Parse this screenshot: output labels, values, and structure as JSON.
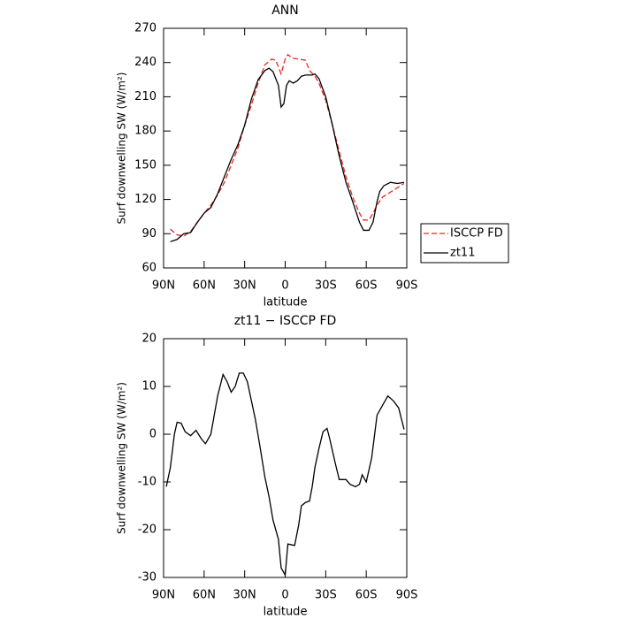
{
  "chart_data": [
    {
      "type": "line",
      "title": "ANN",
      "xlabel": "latitude",
      "ylabel": "Surf downwelling SW (W/m²)",
      "xlim": [
        90,
        -90
      ],
      "ylim": [
        60,
        270
      ],
      "xticks": [
        {
          "value": 90,
          "label": "90N"
        },
        {
          "value": 60,
          "label": "60N"
        },
        {
          "value": 30,
          "label": "30N"
        },
        0,
        {
          "value": -30,
          "label": "30S"
        },
        {
          "value": -60,
          "label": "60S"
        },
        {
          "value": -90,
          "label": "90S"
        }
      ],
      "yticks": [
        60,
        90,
        120,
        150,
        180,
        210,
        240,
        270
      ],
      "legend": "right",
      "series": [
        {
          "name": "ISCCP FD",
          "color": "#e8261f",
          "dashed": true,
          "x": [
            85,
            80,
            75,
            70,
            65,
            60,
            55,
            50,
            45,
            40,
            35,
            30,
            25,
            20,
            15,
            10,
            7,
            3,
            0,
            -2,
            -5,
            -10,
            -15,
            -18,
            -22,
            -25,
            -30,
            -35,
            -40,
            -45,
            -50,
            -55,
            -58,
            -62,
            -65,
            -68,
            -72,
            -80,
            -88
          ],
          "values": [
            94,
            89,
            88,
            92,
            100,
            108,
            115,
            124,
            135,
            150,
            165,
            185,
            203,
            222,
            238,
            243,
            242,
            230,
            243,
            247,
            244,
            243,
            242,
            233,
            228,
            222,
            207,
            185,
            162,
            140,
            122,
            108,
            102,
            102,
            108,
            115,
            122,
            128,
            134
          ]
        },
        {
          "name": "zt11",
          "color": "#000000",
          "dashed": false,
          "x": [
            85,
            80,
            75,
            70,
            65,
            60,
            55,
            50,
            45,
            40,
            35,
            30,
            25,
            20,
            15,
            12,
            9,
            5,
            3,
            1,
            -1,
            -3,
            -6,
            -9,
            -12,
            -15,
            -20,
            -22,
            -25,
            -30,
            -35,
            -40,
            -45,
            -50,
            -55,
            -58,
            -62,
            -65,
            -68,
            -70,
            -73,
            -78,
            -83,
            -88
          ],
          "values": [
            83,
            85,
            90,
            91,
            100,
            108,
            113,
            125,
            140,
            155,
            168,
            185,
            208,
            225,
            233,
            235,
            232,
            220,
            201,
            204,
            220,
            224,
            222,
            224,
            228,
            229,
            229,
            230,
            226,
            210,
            185,
            158,
            135,
            118,
            100,
            93,
            93,
            100,
            118,
            127,
            132,
            135,
            134,
            135
          ]
        }
      ]
    },
    {
      "type": "line",
      "title": "zt11 − ISCCP FD",
      "xlabel": "latitude",
      "ylabel": "Surf downwelling SW (W/m²)",
      "xlim": [
        90,
        -90
      ],
      "ylim": [
        -30,
        20
      ],
      "xticks": [
        {
          "value": 90,
          "label": "90N"
        },
        {
          "value": 60,
          "label": "60N"
        },
        {
          "value": 30,
          "label": "30N"
        },
        0,
        {
          "value": -30,
          "label": "30S"
        },
        {
          "value": -60,
          "label": "60S"
        },
        {
          "value": -90,
          "label": "90S"
        }
      ],
      "yticks": [
        -30,
        -20,
        -10,
        0,
        10,
        20
      ],
      "series": [
        {
          "color": "#000000",
          "dashed": false,
          "x": [
            88,
            85,
            82,
            80,
            77,
            74,
            70,
            66,
            62,
            59,
            55,
            50,
            46,
            43,
            40,
            37,
            34,
            31,
            28,
            25,
            22,
            19,
            15,
            12,
            9,
            5,
            3,
            0,
            -2,
            -7,
            -10,
            -12,
            -15,
            -18,
            -20,
            -22,
            -25,
            -28,
            -31,
            -33,
            -37,
            -40,
            -45,
            -48,
            -52,
            -55,
            -57,
            -60,
            -64,
            -68,
            -72,
            -76,
            -80,
            -84,
            -88
          ],
          "values": [
            -11,
            -7,
            0,
            2.5,
            2.3,
            0.5,
            -0.3,
            0.8,
            -1,
            -2,
            0,
            8,
            12.5,
            11,
            8.8,
            10,
            12.8,
            12.8,
            11,
            7,
            3,
            -2,
            -9,
            -13,
            -18,
            -22,
            -28,
            -29.5,
            -23,
            -23.3,
            -19,
            -15,
            -14.3,
            -14,
            -11,
            -7,
            -3,
            0.5,
            1.2,
            -1,
            -6,
            -9.5,
            -9.5,
            -10.5,
            -11,
            -10.5,
            -8.5,
            -10,
            -5,
            4,
            6,
            8,
            7,
            5.5,
            1
          ]
        }
      ]
    }
  ]
}
